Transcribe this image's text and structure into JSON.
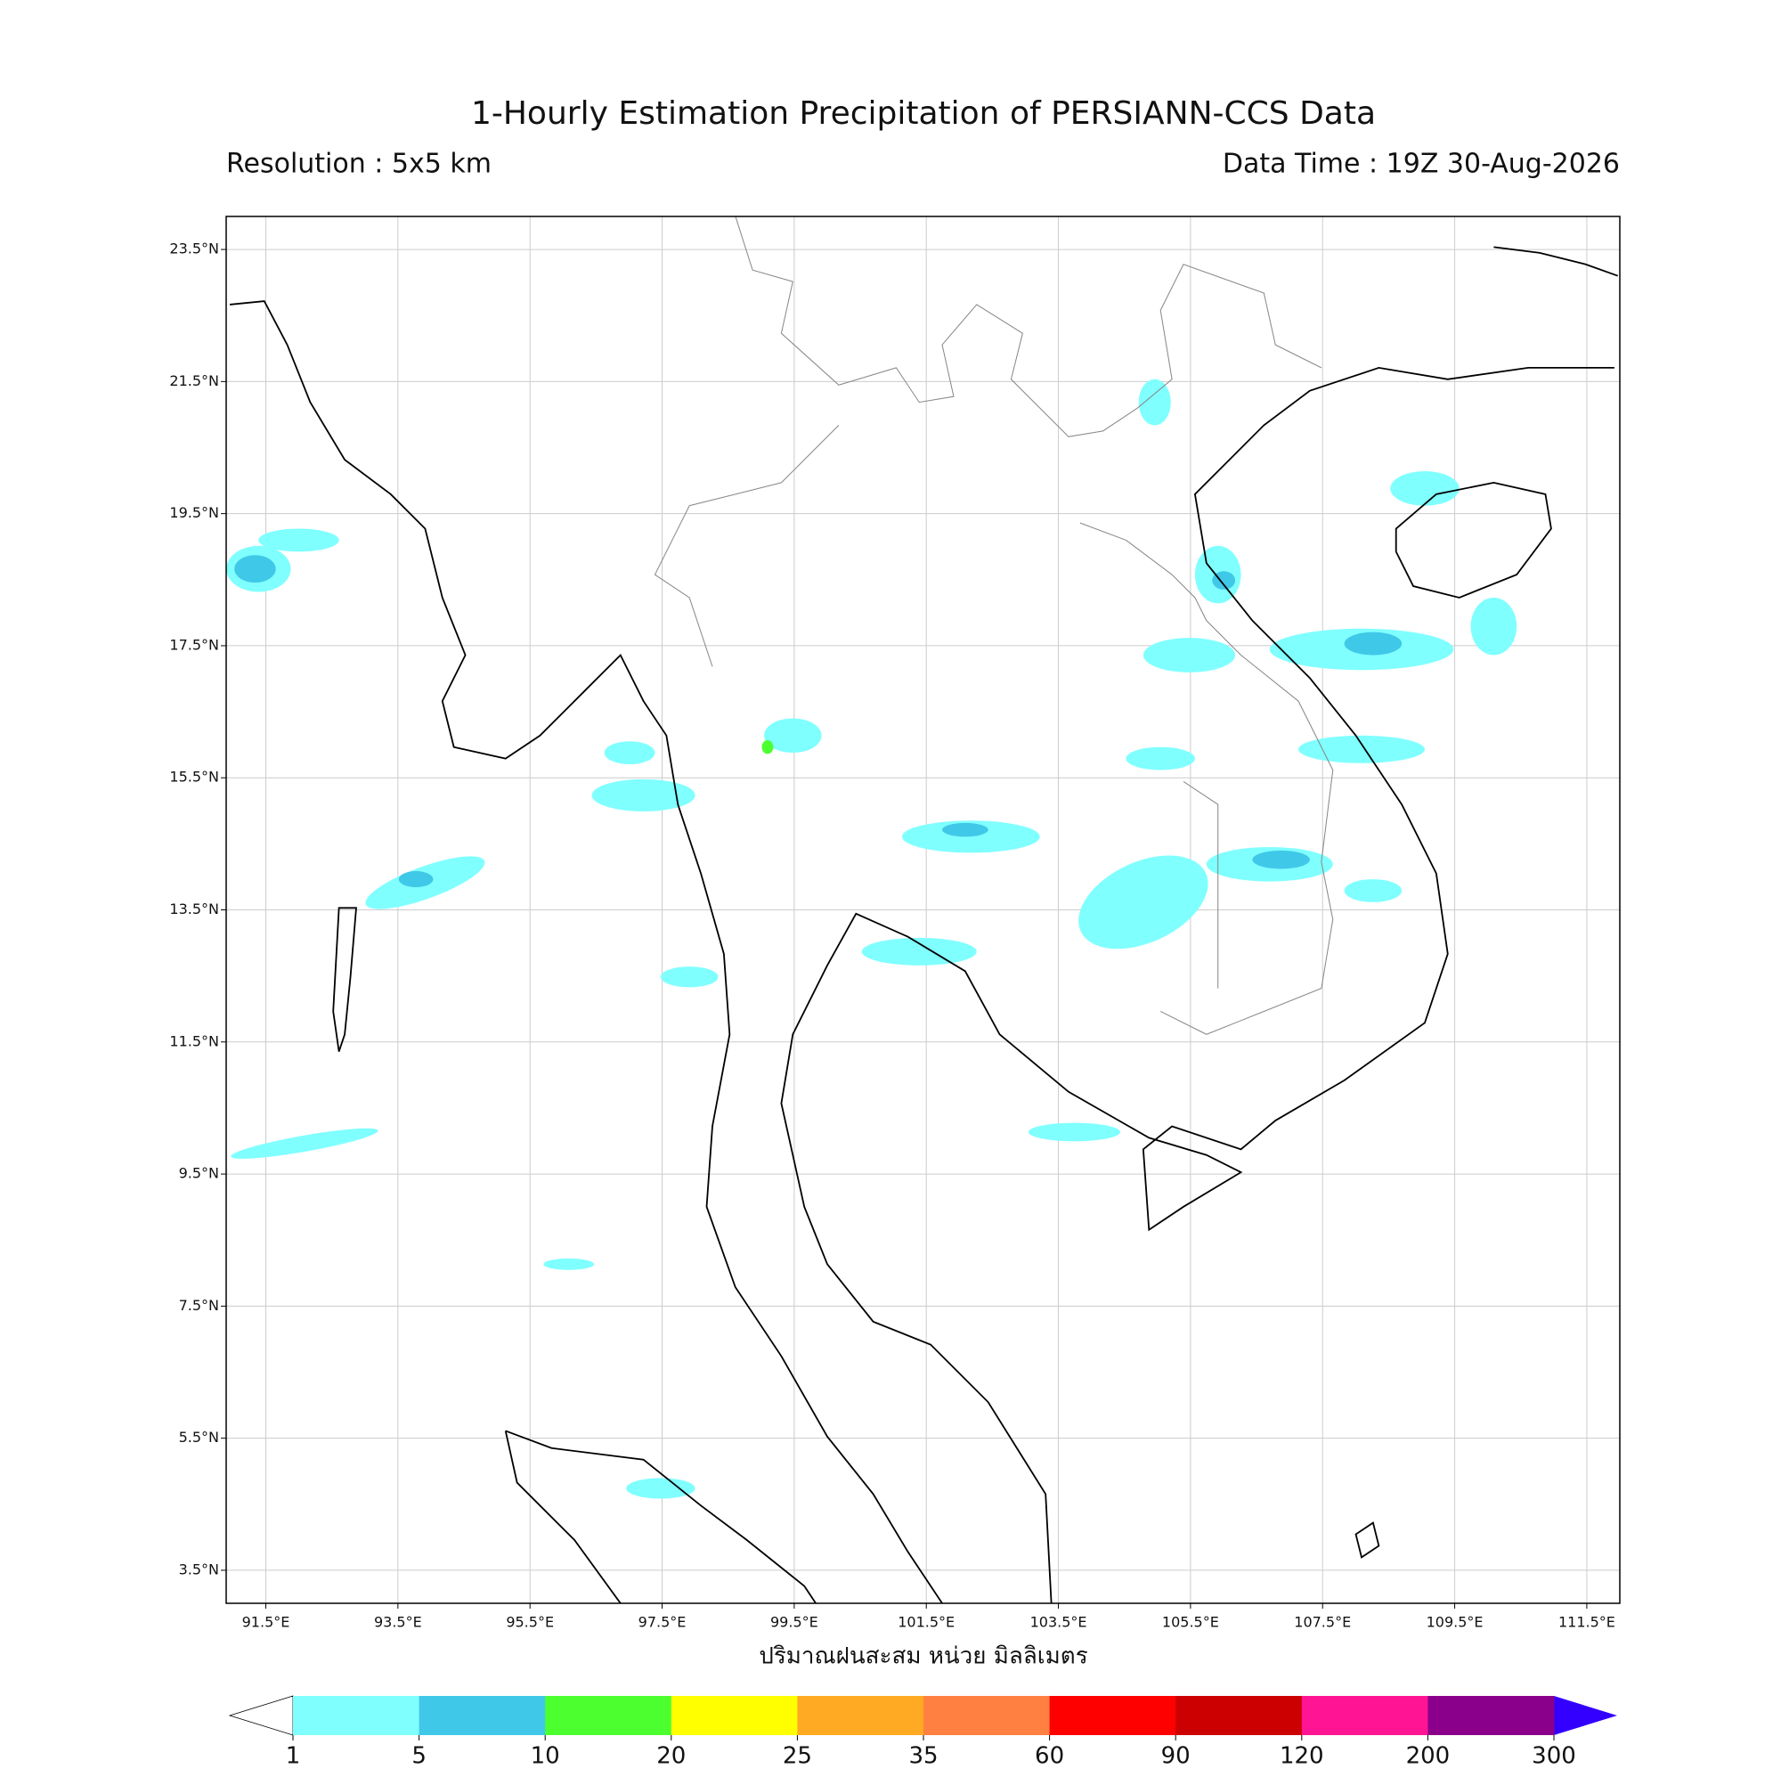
{
  "title": "1-Hourly Estimation Precipitation of PERSIANN-CCS Data",
  "resolution": "Resolution : 5x5 km",
  "data_time": "Data Time : 19Z 30-Aug-2026",
  "map": {
    "lon_range": [
      90.9,
      112.0
    ],
    "lat_range": [
      3.0,
      24.0
    ],
    "lon_ticks": [
      {
        "value": 91.5,
        "label": "91.5°E"
      },
      {
        "value": 93.5,
        "label": "93.5°E"
      },
      {
        "value": 95.5,
        "label": "95.5°E"
      },
      {
        "value": 97.5,
        "label": "97.5°E"
      },
      {
        "value": 99.5,
        "label": "99.5°E"
      },
      {
        "value": 101.5,
        "label": "101.5°E"
      },
      {
        "value": 103.5,
        "label": "103.5°E"
      },
      {
        "value": 105.5,
        "label": "105.5°E"
      },
      {
        "value": 107.5,
        "label": "107.5°E"
      },
      {
        "value": 109.5,
        "label": "109.5°E"
      },
      {
        "value": 111.5,
        "label": "111.5°E"
      }
    ],
    "lat_ticks": [
      {
        "value": 3.5,
        "label": "3.5°N"
      },
      {
        "value": 5.5,
        "label": "5.5°N"
      },
      {
        "value": 7.5,
        "label": "7.5°N"
      },
      {
        "value": 9.5,
        "label": "9.5°N"
      },
      {
        "value": 11.5,
        "label": "11.5°N"
      },
      {
        "value": 13.5,
        "label": "13.5°N"
      },
      {
        "value": 15.5,
        "label": "15.5°N"
      },
      {
        "value": 17.5,
        "label": "17.5°N"
      },
      {
        "value": 19.5,
        "label": "19.5°N"
      },
      {
        "value": 21.5,
        "label": "21.5°N"
      },
      {
        "value": 23.5,
        "label": "23.5°N"
      }
    ],
    "xlabel": "ปริมาณฝนสะสม หน่วย มิลลิเมตร"
  },
  "colorbar": {
    "bounds": [
      1,
      5,
      10,
      20,
      25,
      35,
      60,
      90,
      120,
      200,
      300
    ],
    "colors": [
      "#80ffff",
      "#40c8e8",
      "#4cff2e",
      "#ffff00",
      "#ffaa22",
      "#ff8040",
      "#ff0000",
      "#cc0000",
      "#ff1493",
      "#8b008b"
    ],
    "under_color": "#ffffff",
    "over_color": "#3300ff"
  }
}
